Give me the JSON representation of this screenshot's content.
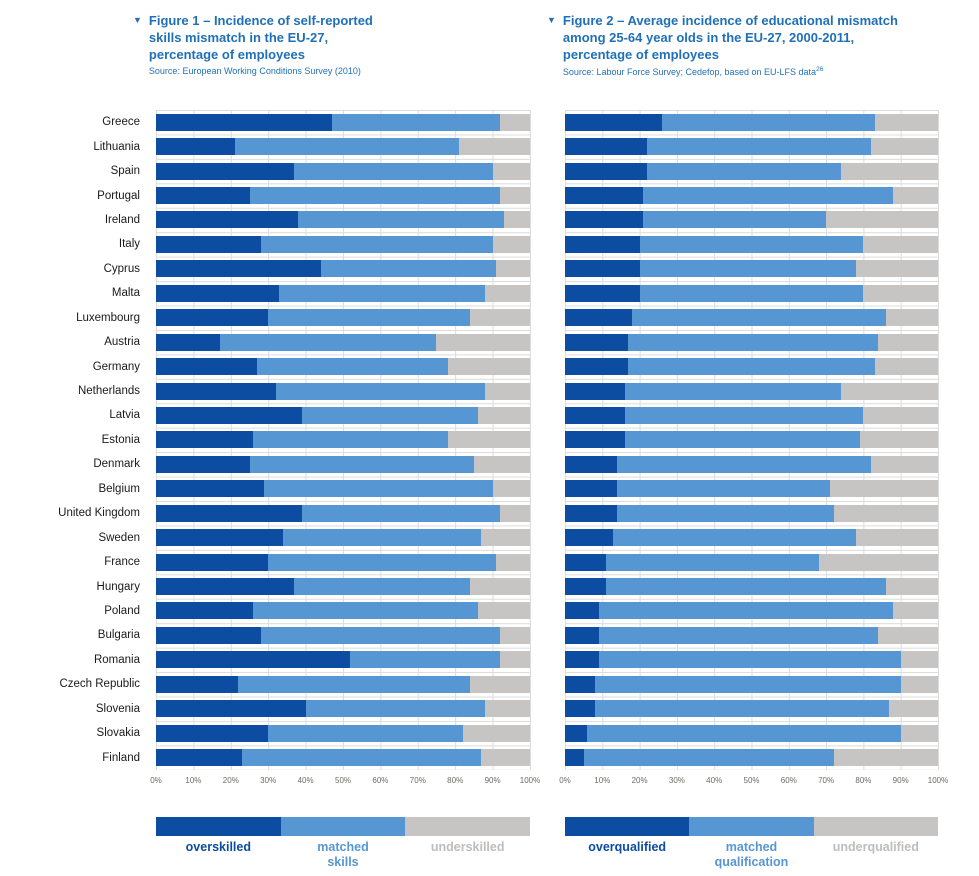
{
  "colors": {
    "dark_blue": "#0C4DA2",
    "light_blue": "#5697D3",
    "gray": "#C7C5C3",
    "title_blue": "#1F70B8",
    "grid_line": "#DCDCDC",
    "axis_text": "#6F6A64",
    "country_text": "#1a1a1a",
    "legend_gray_text": "#BFBDBB"
  },
  "chart_data": [
    {
      "id": "figure1",
      "type": "bar",
      "stacked": true,
      "orientation": "horizontal",
      "unit": "%",
      "marker": "▼",
      "title": "Figure 1 – Incidence of self-reported\nskills mismatch in the EU-27,\npercentage of employees",
      "source": "Source: European Working Conditions Survey (2010)",
      "source_sup": "",
      "xlabel": "",
      "ylabel": "",
      "xlim": [
        0,
        100
      ],
      "grid": true,
      "legend_position": "bottom",
      "x_ticks": [
        "0%",
        "10%",
        "20%",
        "30%",
        "40%",
        "50%",
        "60%",
        "70%",
        "80%",
        "90%",
        "100%"
      ],
      "categories": [
        "Greece",
        "Lithuania",
        "Spain",
        "Portugal",
        "Ireland",
        "Italy",
        "Cyprus",
        "Malta",
        "Luxembourg",
        "Austria",
        "Germany",
        "Netherlands",
        "Latvia",
        "Estonia",
        "Denmark",
        "Belgium",
        "United Kingdom",
        "Sweden",
        "France",
        "Hungary",
        "Poland",
        "Bulgaria",
        "Romania",
        "Czech Republic",
        "Slovenia",
        "Slovakia",
        "Finland"
      ],
      "series": [
        {
          "key": "overskilled",
          "name": "overskilled",
          "color": "#0C4DA2",
          "values": [
            47,
            21,
            37,
            25,
            38,
            28,
            44,
            33,
            30,
            17,
            27,
            32,
            39,
            26,
            25,
            29,
            39,
            34,
            30,
            37,
            26,
            28,
            52,
            22,
            40,
            30,
            23
          ]
        },
        {
          "key": "matched-skills",
          "name": "matched skills",
          "color": "#5697D3",
          "values": [
            45,
            60,
            53,
            67,
            55,
            62,
            47,
            55,
            54,
            58,
            51,
            56,
            47,
            52,
            60,
            61,
            53,
            53,
            61,
            47,
            60,
            64,
            40,
            62,
            48,
            52,
            64
          ]
        },
        {
          "key": "underskilled",
          "name": "underskilled",
          "color": "#C7C5C3",
          "values": [
            8,
            19,
            10,
            8,
            7,
            10,
            9,
            12,
            16,
            25,
            22,
            12,
            14,
            22,
            15,
            10,
            8,
            13,
            9,
            16,
            14,
            8,
            8,
            16,
            12,
            18,
            13
          ]
        }
      ],
      "legend": [
        {
          "label": "overskilled",
          "color": "#0C4DA2",
          "text_color": "#0C4DA2"
        },
        {
          "label": "matched\nskills",
          "color": "#5697D3",
          "text_color": "#5697D3"
        },
        {
          "label": "underskilled",
          "color": "#C7C5C3",
          "text_color": "#BFBDBB"
        }
      ]
    },
    {
      "id": "figure2",
      "type": "bar",
      "stacked": true,
      "orientation": "horizontal",
      "unit": "%",
      "marker": "▼",
      "title": "Figure 2 – Average incidence of educational mismatch\namong 25-64 year olds in the EU-27, 2000-2011,\npercentage of employees",
      "source": "Source: Labour Force Survey; Cedefop, based on EU-LFS data",
      "source_sup": "26",
      "xlabel": "",
      "ylabel": "",
      "xlim": [
        0,
        100
      ],
      "grid": true,
      "legend_position": "bottom",
      "x_ticks": [
        "0%",
        "10%",
        "20%",
        "30%",
        "40%",
        "50%",
        "60%",
        "70%",
        "80%",
        "90%",
        "100%"
      ],
      "categories": [
        "Greece",
        "Lithuania",
        "Spain",
        "Portugal",
        "Ireland",
        "Italy",
        "Cyprus",
        "Malta",
        "Luxembourg",
        "Austria",
        "Germany",
        "Netherlands",
        "Latvia",
        "Estonia",
        "Denmark",
        "Belgium",
        "United Kingdom",
        "Sweden",
        "France",
        "Hungary",
        "Poland",
        "Bulgaria",
        "Romania",
        "Czech Republic",
        "Slovenia",
        "Slovakia",
        "Finland"
      ],
      "series": [
        {
          "key": "overqualified",
          "name": "overqualified",
          "color": "#0C4DA2",
          "values": [
            26,
            22,
            22,
            21,
            21,
            20,
            20,
            20,
            18,
            17,
            17,
            16,
            16,
            16,
            14,
            14,
            14,
            13,
            11,
            11,
            9,
            9,
            9,
            8,
            8,
            6,
            5
          ]
        },
        {
          "key": "matched-qualification",
          "name": "matched qualification",
          "color": "#5697D3",
          "values": [
            57,
            60,
            52,
            67,
            49,
            60,
            58,
            60,
            68,
            67,
            66,
            58,
            64,
            63,
            68,
            57,
            58,
            65,
            57,
            75,
            79,
            75,
            81,
            82,
            79,
            84,
            67
          ]
        },
        {
          "key": "underqualified",
          "name": "underqualified",
          "color": "#C7C5C3",
          "values": [
            17,
            18,
            26,
            12,
            30,
            20,
            22,
            20,
            14,
            16,
            17,
            26,
            20,
            21,
            18,
            29,
            28,
            22,
            32,
            14,
            12,
            16,
            10,
            10,
            13,
            10,
            28
          ]
        }
      ],
      "legend": [
        {
          "label": "overqualified",
          "color": "#0C4DA2",
          "text_color": "#0C4DA2"
        },
        {
          "label": "matched\nqualification",
          "color": "#5697D3",
          "text_color": "#5697D3"
        },
        {
          "label": "underqualified",
          "color": "#C7C5C3",
          "text_color": "#BFBDBB"
        }
      ]
    }
  ]
}
